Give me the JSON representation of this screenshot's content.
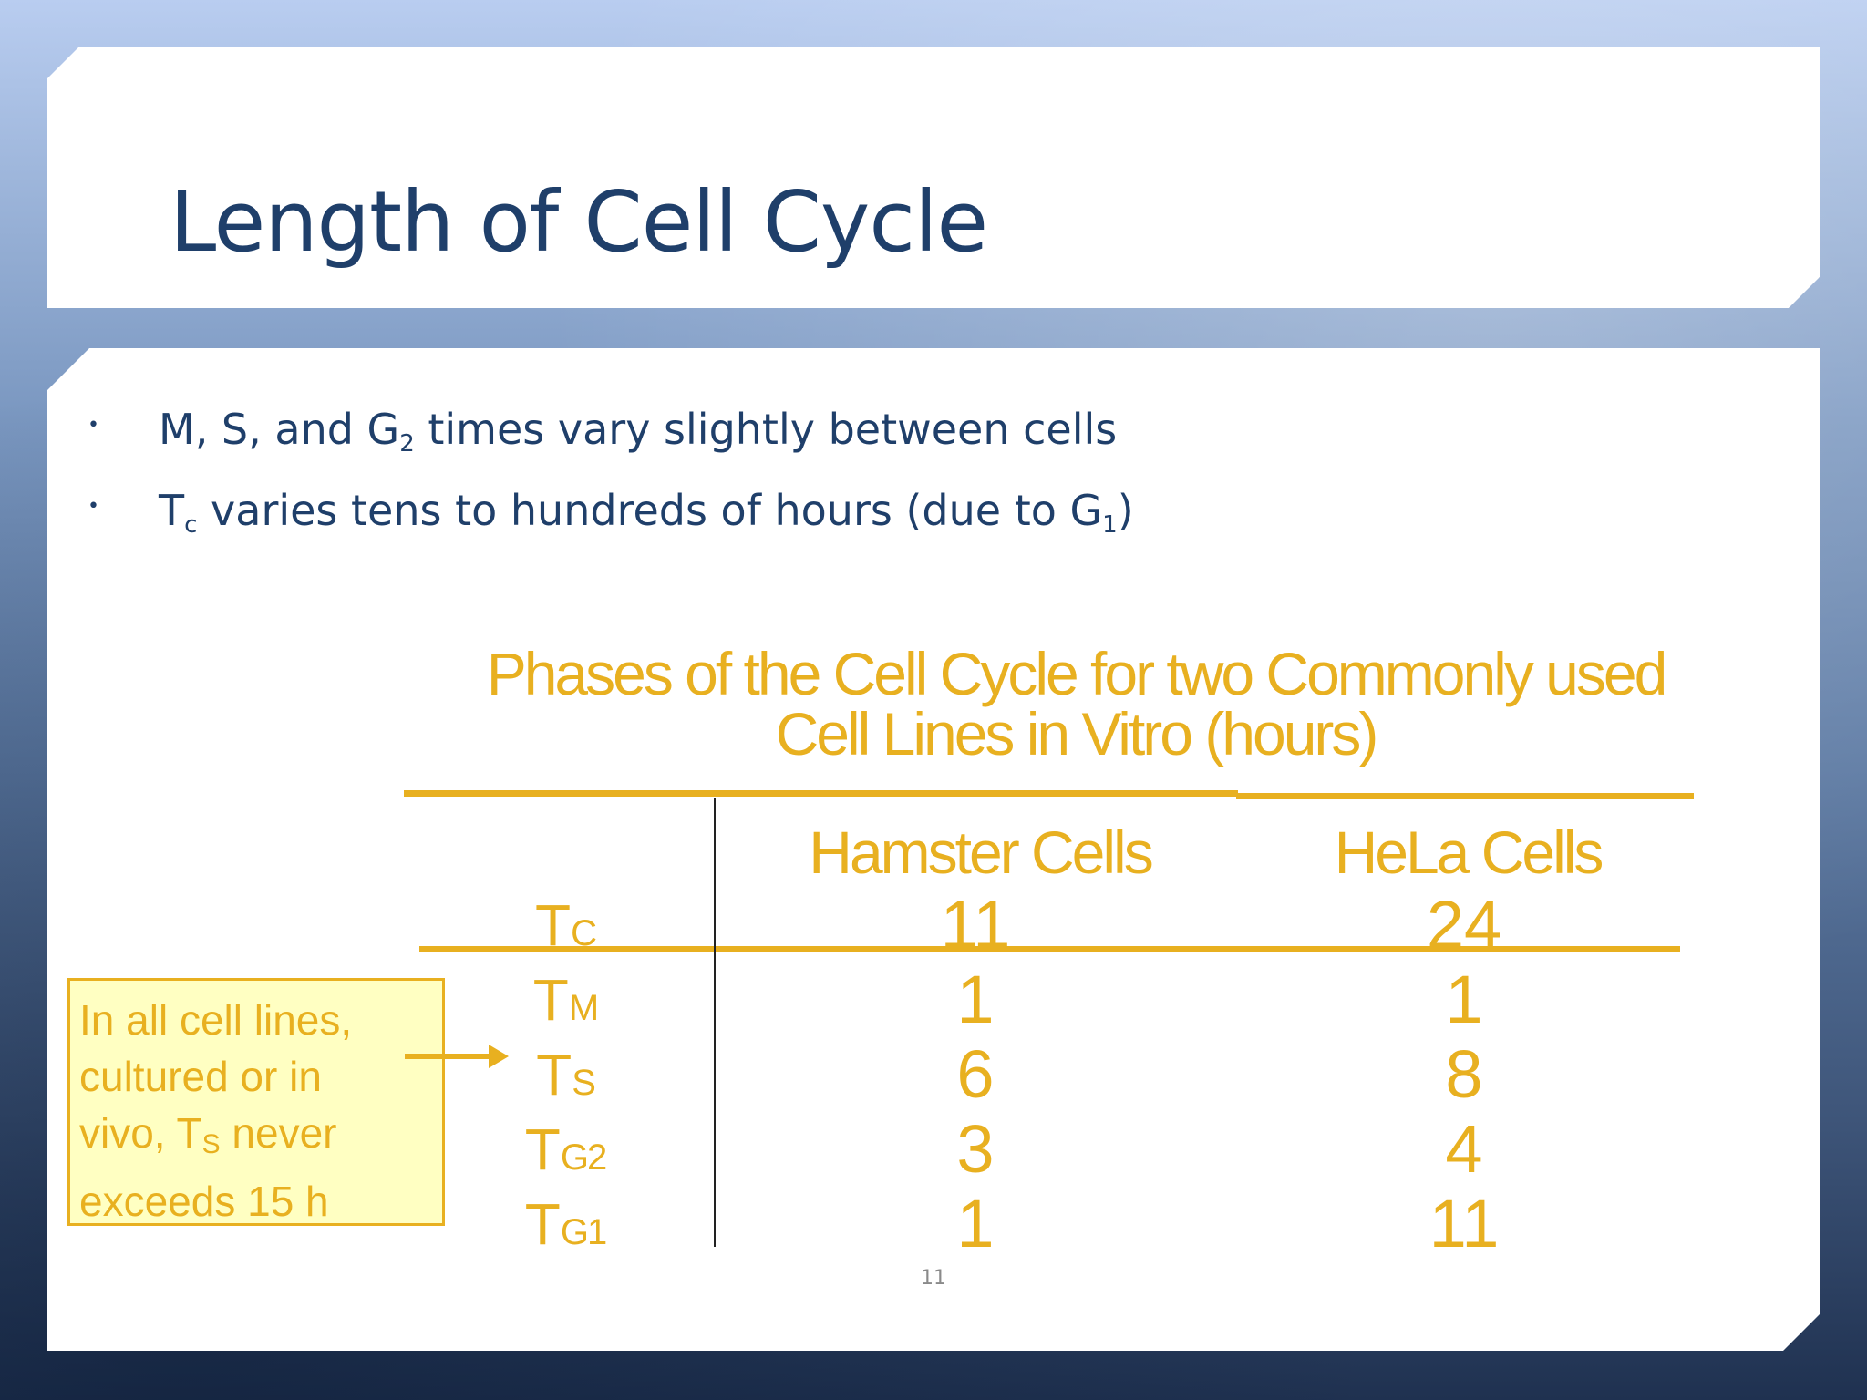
{
  "slide": {
    "title": "Length of Cell Cycle",
    "bullets": [
      {
        "pre": "M, S, and G",
        "sub": "2",
        "post": " times vary slightly between cells"
      },
      {
        "pre": "T",
        "sub": "c",
        "post": " varies tens to hundreds of hours (due to G",
        "sub2": "1",
        "post2": ")"
      }
    ],
    "page_number": "11"
  },
  "table": {
    "title_line1": "Phases of the Cell Cycle for two Commonly used",
    "title_line2": "Cell Lines in Vitro (hours)",
    "columns": [
      "Hamster Cells",
      "HeLa Cells"
    ],
    "rows": [
      {
        "label_main": "T",
        "label_sub": "C",
        "hamster": "11",
        "hela": "24"
      },
      {
        "label_main": "T",
        "label_sub": "M",
        "hamster": "1",
        "hela": "1"
      },
      {
        "label_main": "T",
        "label_sub": "S",
        "hamster": "6",
        "hela": "8"
      },
      {
        "label_main": "T",
        "label_sub": "G2",
        "hamster": "3",
        "hela": "4"
      },
      {
        "label_main": "T",
        "label_sub": "G1",
        "hamster": "1",
        "hela": "11"
      }
    ]
  },
  "note": {
    "line1": "In all cell lines,",
    "line2": "cultured or in",
    "line3_pre": "vivo, T",
    "line3_sub": "S",
    "line3_post": " never",
    "line4": "exceeds 15 h"
  },
  "colors": {
    "title": "#1f3f6a",
    "accent": "#e8b020",
    "note_bg": "#ffffc2"
  }
}
